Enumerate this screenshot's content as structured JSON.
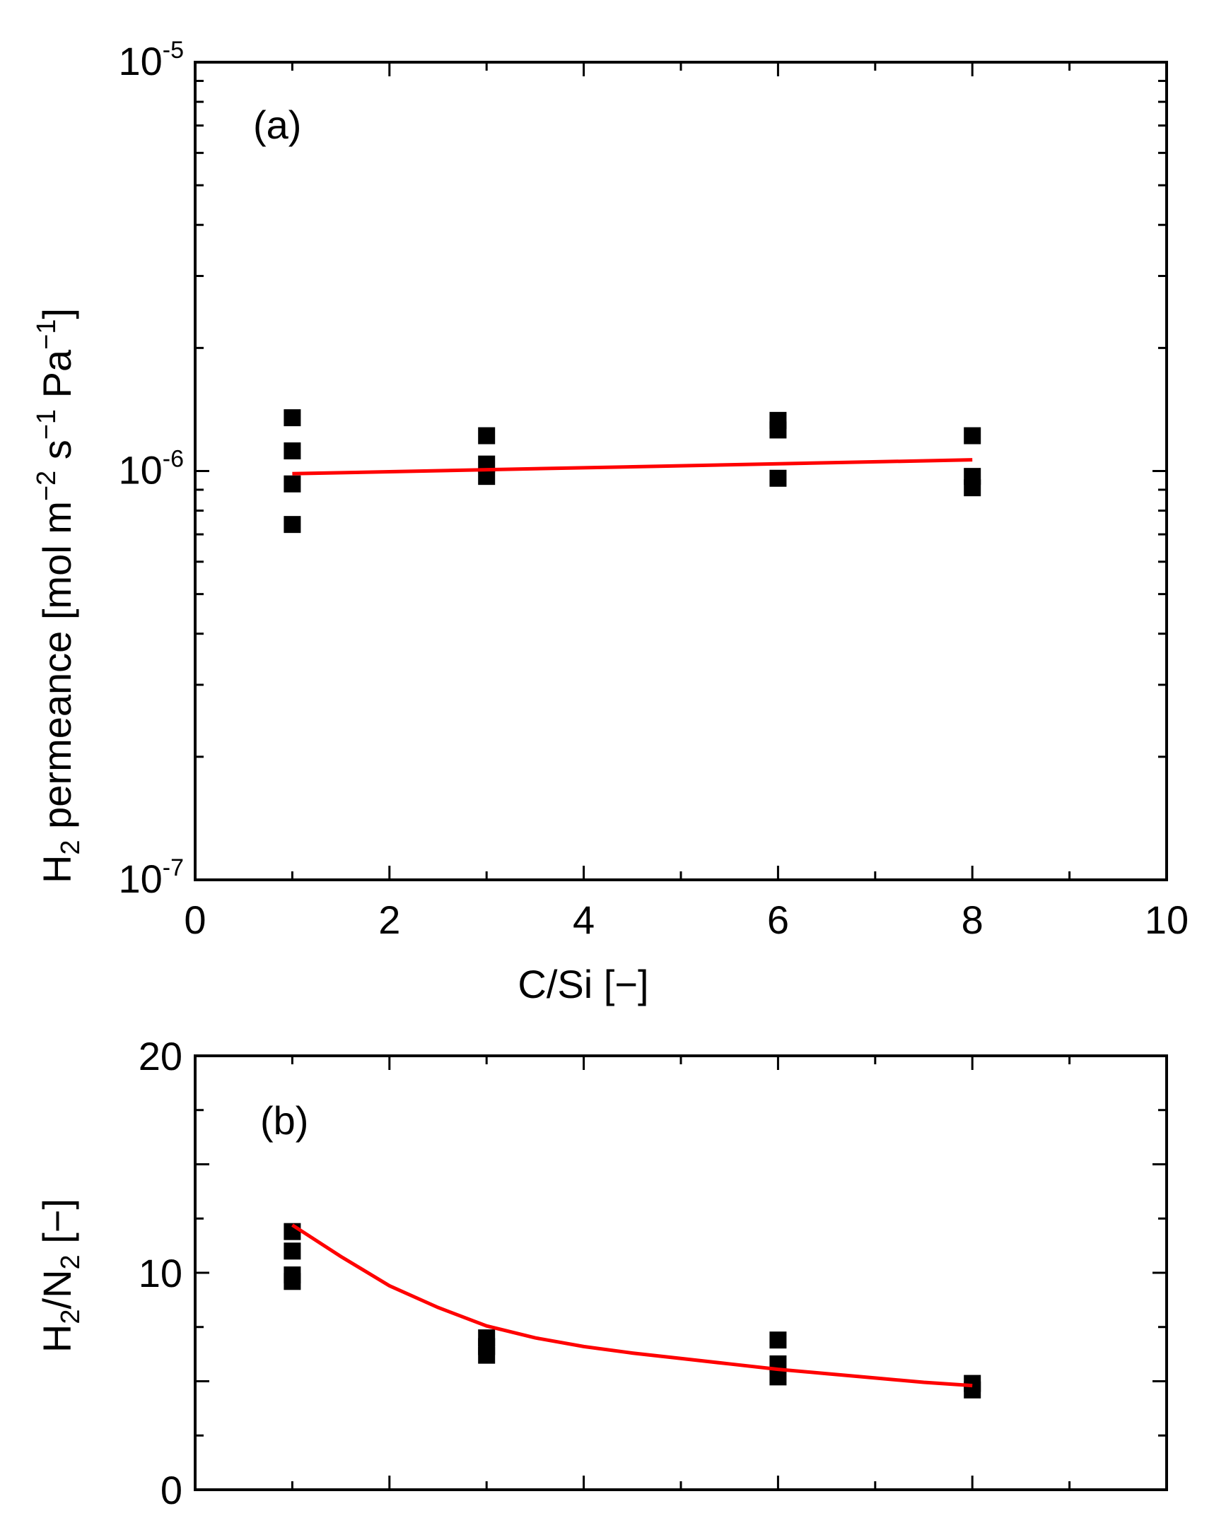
{
  "chart_data": [
    {
      "type": "scatter",
      "panel_label": "(a)",
      "xlabel": "C/Si [−]",
      "ylabel": {
        "parts": [
          "H",
          "2",
          " permeance [mol m",
          "−2",
          " s",
          "−1",
          " Pa",
          "−1",
          "]"
        ]
      },
      "x_scale": "linear",
      "y_scale": "log",
      "xlim": [
        0,
        10
      ],
      "ylim": [
        1e-07,
        1e-05
      ],
      "x_ticks": [
        0,
        2,
        4,
        6,
        8,
        10
      ],
      "x_tick_labels": [
        "0",
        "2",
        "4",
        "6",
        "8",
        "10"
      ],
      "y_tick_labels": [
        {
          "value": 1e-07,
          "base": "10",
          "exp": "-7"
        },
        {
          "value": 1e-06,
          "base": "10",
          "exp": "-6"
        },
        {
          "value": 1e-05,
          "base": "10",
          "exp": "-5"
        }
      ],
      "series": [
        {
          "name": "measured",
          "marker": "square",
          "color": "#000000",
          "points": [
            [
              1,
              1.35e-06
            ],
            [
              1,
              1.12e-06
            ],
            [
              1,
              9.3e-07
            ],
            [
              1,
              7.4e-07
            ],
            [
              3,
              1.22e-06
            ],
            [
              3,
              1.04e-06
            ],
            [
              3,
              9.7e-07
            ],
            [
              6,
              1.33e-06
            ],
            [
              6,
              1.26e-06
            ],
            [
              6,
              9.6e-07
            ],
            [
              8,
              1.22e-06
            ],
            [
              8,
              9.7e-07
            ],
            [
              8,
              9.1e-07
            ]
          ]
        },
        {
          "name": "fit",
          "type": "line",
          "color": "#ff0000",
          "points": [
            [
              1,
              9.85e-07
            ],
            [
              8,
              1.065e-06
            ]
          ]
        }
      ]
    },
    {
      "type": "scatter",
      "panel_label": "(b)",
      "xlabel": "",
      "ylabel": {
        "parts": [
          "H",
          "2",
          "/N",
          "2",
          " [−]"
        ]
      },
      "x_scale": "linear",
      "y_scale": "linear",
      "xlim": [
        0,
        10
      ],
      "ylim": [
        0,
        20
      ],
      "x_ticks": [
        0,
        2,
        4,
        6,
        8,
        10
      ],
      "y_ticks": [
        0,
        10,
        20
      ],
      "y_tick_labels": [
        "0",
        "10",
        "20"
      ],
      "series": [
        {
          "name": "measured",
          "marker": "square",
          "color": "#000000",
          "points": [
            [
              1,
              11.9
            ],
            [
              1,
              11.0
            ],
            [
              1,
              9.9
            ],
            [
              1,
              9.6
            ],
            [
              3,
              7.0
            ],
            [
              3,
              6.6
            ],
            [
              3,
              6.2
            ],
            [
              6,
              6.9
            ],
            [
              6,
              5.8
            ],
            [
              6,
              5.2
            ],
            [
              8,
              4.9
            ],
            [
              8,
              4.6
            ]
          ]
        },
        {
          "name": "fit",
          "type": "line",
          "color": "#ff0000",
          "points": [
            [
              1,
              12.2
            ],
            [
              1.5,
              10.75
            ],
            [
              2,
              9.4
            ],
            [
              2.5,
              8.4
            ],
            [
              3,
              7.55
            ],
            [
              3.5,
              7.0
            ],
            [
              4,
              6.6
            ],
            [
              4.5,
              6.3
            ],
            [
              5,
              6.05
            ],
            [
              5.5,
              5.8
            ],
            [
              6,
              5.55
            ],
            [
              6.5,
              5.35
            ],
            [
              7,
              5.15
            ],
            [
              7.5,
              4.95
            ],
            [
              8,
              4.8
            ]
          ]
        }
      ]
    }
  ]
}
